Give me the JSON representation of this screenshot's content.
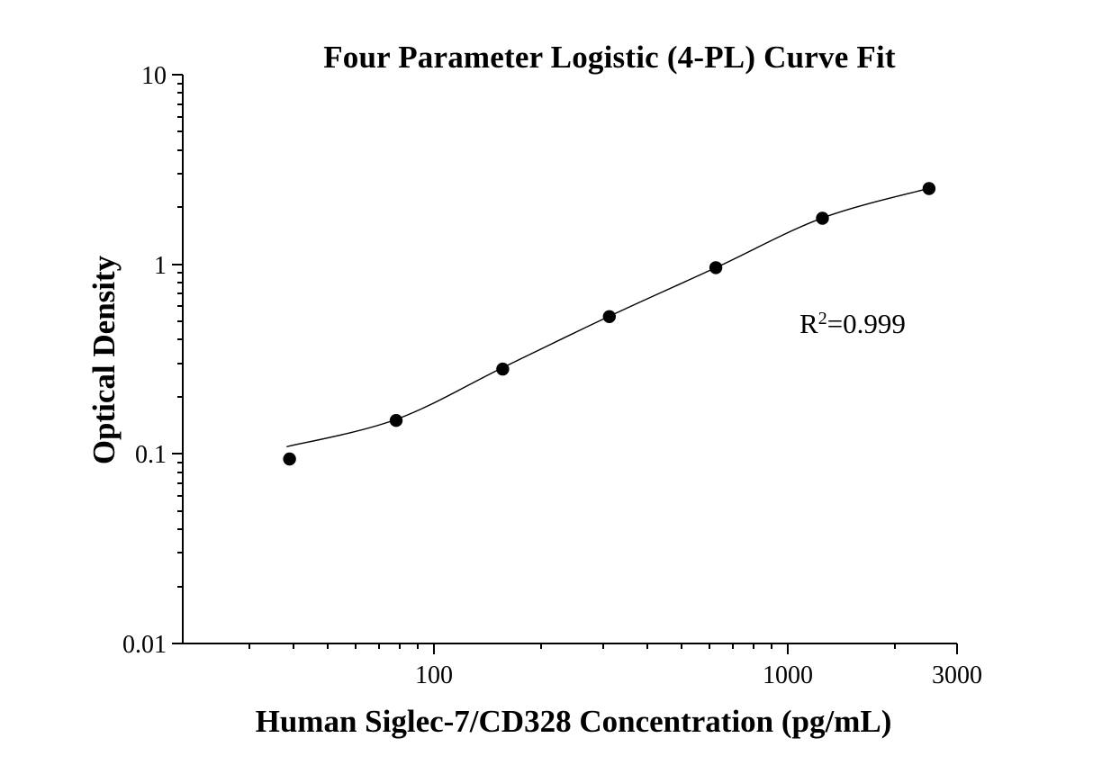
{
  "title": "Four Parameter Logistic (4-PL) Curve Fit",
  "annotation": {
    "base": "R",
    "sup": "2",
    "rest": "=0.999"
  },
  "colors": {
    "foreground": "#000000",
    "background": "#ffffff"
  },
  "chart_data": {
    "type": "scatter",
    "title": "Four Parameter Logistic (4-PL) Curve Fit",
    "xlabel": "Human Siglec-7/CD328 Concentration (pg/mL)",
    "ylabel": "Optical Density",
    "x_scale": "log",
    "y_scale": "log",
    "xlim": [
      19.5,
      3000
    ],
    "ylim": [
      0.01,
      10
    ],
    "grid": false,
    "legend": false,
    "x_major_ticks": [
      {
        "value": 100,
        "label": "100"
      },
      {
        "value": 1000,
        "label": "1000"
      },
      {
        "value": 3000,
        "label": "3000"
      }
    ],
    "x_minor_ticks": [
      30,
      40,
      50,
      60,
      70,
      80,
      90,
      200,
      300,
      400,
      500,
      600,
      700,
      800,
      900,
      2000
    ],
    "y_major_ticks": [
      {
        "value": 10,
        "label": "10"
      },
      {
        "value": 1,
        "label": "1"
      },
      {
        "value": 0.1,
        "label": "0.1"
      },
      {
        "value": 0.01,
        "label": "0.01"
      }
    ],
    "y_minor_ticks": [
      0.02,
      0.03,
      0.04,
      0.05,
      0.06,
      0.07,
      0.08,
      0.09,
      0.2,
      0.3,
      0.4,
      0.5,
      0.6,
      0.7,
      0.8,
      0.9,
      2,
      3,
      4,
      5,
      6,
      7,
      8,
      9
    ],
    "points": {
      "x": [
        39.06,
        78.13,
        156.25,
        312.5,
        625,
        1250,
        2500
      ],
      "y": [
        0.094,
        0.15,
        0.28,
        0.53,
        0.96,
        1.75,
        2.51
      ]
    },
    "fit_curve": {
      "model": "4PL",
      "r_squared": 0.999,
      "annotation_text": "R2=0.999",
      "anchors": [
        [
          38.3,
          0.109
        ],
        [
          78.13,
          0.152
        ],
        [
          156.25,
          0.285
        ],
        [
          312.5,
          0.532
        ],
        [
          625,
          0.96
        ],
        [
          1250,
          1.755
        ],
        [
          2510,
          2.52
        ]
      ]
    }
  }
}
